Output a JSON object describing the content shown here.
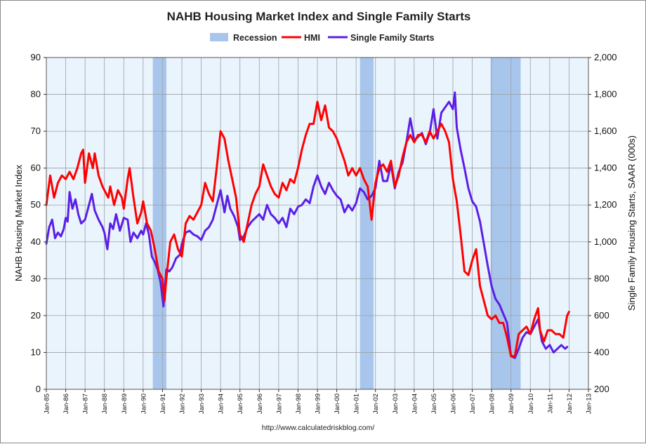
{
  "chart_data": {
    "type": "line",
    "title": "NAHB Housing Market Index and Single Family Starts",
    "source": "http://www.calculatedriskblog.com/",
    "ylabel_left": "NAHB Housing Market Index",
    "ylabel_right": "Single Family Housing Starts, SAAR (000s)",
    "ylim_left": [
      0,
      90
    ],
    "ylim_right": [
      200,
      2000
    ],
    "yticks_left": [
      "0",
      "10",
      "20",
      "30",
      "40",
      "50",
      "60",
      "70",
      "80",
      "90"
    ],
    "yticks_right": [
      "200",
      "400",
      "600",
      "800",
      "1,000",
      "1,200",
      "1,400",
      "1,600",
      "1,800",
      "2,000"
    ],
    "xticks": [
      "Jan-85",
      "Jan-86",
      "Jan-87",
      "Jan-88",
      "Jan-89",
      "Jan-90",
      "Jan-91",
      "Jan-92",
      "Jan-93",
      "Jan-94",
      "Jan-95",
      "Jan-96",
      "Jan-97",
      "Jan-98",
      "Jan-99",
      "Jan-00",
      "Jan-01",
      "Jan-02",
      "Jan-03",
      "Jan-04",
      "Jan-05",
      "Jan-06",
      "Jan-07",
      "Jan-08",
      "Jan-09",
      "Jan-10",
      "Jan-11",
      "Jan-12",
      "Jan-13"
    ],
    "xlim_years": [
      1985,
      2013
    ],
    "grid": true,
    "legend_position": "top-center",
    "legend": [
      "Recession",
      "HMI",
      "Single Family Starts"
    ],
    "colors": {
      "recession": "#a8c6ec",
      "hmi": "#ff0000",
      "starts": "#5b1fe6",
      "plot_bg": "#eaf4fd"
    },
    "recessions": [
      {
        "start": 1990.5,
        "end": 1991.2
      },
      {
        "start": 2001.2,
        "end": 2001.9
      },
      {
        "start": 2007.95,
        "end": 2009.5
      }
    ],
    "series": [
      {
        "name": "HMI",
        "axis": "left",
        "points": [
          [
            1985.0,
            50
          ],
          [
            1985.2,
            58
          ],
          [
            1985.4,
            52
          ],
          [
            1985.6,
            56
          ],
          [
            1985.8,
            58
          ],
          [
            1986.0,
            57
          ],
          [
            1986.2,
            59
          ],
          [
            1986.4,
            57
          ],
          [
            1986.6,
            60
          ],
          [
            1986.8,
            64
          ],
          [
            1986.9,
            65
          ],
          [
            1987.0,
            56
          ],
          [
            1987.2,
            64
          ],
          [
            1987.4,
            60
          ],
          [
            1987.5,
            64
          ],
          [
            1987.7,
            58
          ],
          [
            1987.9,
            55
          ],
          [
            1988.0,
            54
          ],
          [
            1988.2,
            52
          ],
          [
            1988.3,
            55
          ],
          [
            1988.5,
            50
          ],
          [
            1988.7,
            54
          ],
          [
            1988.9,
            52
          ],
          [
            1989.0,
            49
          ],
          [
            1989.2,
            57
          ],
          [
            1989.3,
            60
          ],
          [
            1989.5,
            52
          ],
          [
            1989.7,
            45
          ],
          [
            1989.9,
            48
          ],
          [
            1990.0,
            51
          ],
          [
            1990.2,
            45
          ],
          [
            1990.4,
            43
          ],
          [
            1990.6,
            38
          ],
          [
            1990.8,
            32
          ],
          [
            1991.0,
            30
          ],
          [
            1991.1,
            24
          ],
          [
            1991.2,
            30
          ],
          [
            1991.4,
            40
          ],
          [
            1991.6,
            42
          ],
          [
            1991.8,
            38
          ],
          [
            1992.0,
            36
          ],
          [
            1992.2,
            45
          ],
          [
            1992.4,
            47
          ],
          [
            1992.6,
            46
          ],
          [
            1992.8,
            48
          ],
          [
            1993.0,
            50
          ],
          [
            1993.2,
            56
          ],
          [
            1993.4,
            53
          ],
          [
            1993.6,
            51
          ],
          [
            1993.8,
            60
          ],
          [
            1994.0,
            70
          ],
          [
            1994.2,
            68
          ],
          [
            1994.4,
            62
          ],
          [
            1994.6,
            57
          ],
          [
            1994.8,
            52
          ],
          [
            1995.0,
            42
          ],
          [
            1995.2,
            40
          ],
          [
            1995.4,
            45
          ],
          [
            1995.6,
            50
          ],
          [
            1995.8,
            53
          ],
          [
            1996.0,
            55
          ],
          [
            1996.2,
            61
          ],
          [
            1996.4,
            58
          ],
          [
            1996.6,
            55
          ],
          [
            1996.8,
            53
          ],
          [
            1997.0,
            52
          ],
          [
            1997.2,
            56
          ],
          [
            1997.4,
            54
          ],
          [
            1997.6,
            57
          ],
          [
            1997.8,
            56
          ],
          [
            1998.0,
            60
          ],
          [
            1998.2,
            65
          ],
          [
            1998.4,
            69
          ],
          [
            1998.6,
            72
          ],
          [
            1998.8,
            72
          ],
          [
            1999.0,
            78
          ],
          [
            1999.2,
            73
          ],
          [
            1999.4,
            77
          ],
          [
            1999.6,
            71
          ],
          [
            1999.8,
            70
          ],
          [
            2000.0,
            68
          ],
          [
            2000.2,
            65
          ],
          [
            2000.4,
            62
          ],
          [
            2000.6,
            58
          ],
          [
            2000.8,
            60
          ],
          [
            2001.0,
            58
          ],
          [
            2001.2,
            60
          ],
          [
            2001.4,
            57
          ],
          [
            2001.6,
            55
          ],
          [
            2001.8,
            46
          ],
          [
            2002.0,
            56
          ],
          [
            2002.2,
            60
          ],
          [
            2002.4,
            61
          ],
          [
            2002.6,
            59
          ],
          [
            2002.8,
            62
          ],
          [
            2003.0,
            55
          ],
          [
            2003.2,
            58
          ],
          [
            2003.4,
            63
          ],
          [
            2003.6,
            67
          ],
          [
            2003.8,
            69
          ],
          [
            2004.0,
            67
          ],
          [
            2004.2,
            69
          ],
          [
            2004.4,
            69
          ],
          [
            2004.6,
            67
          ],
          [
            2004.8,
            70
          ],
          [
            2005.0,
            68
          ],
          [
            2005.2,
            70
          ],
          [
            2005.4,
            72
          ],
          [
            2005.6,
            70
          ],
          [
            2005.8,
            67
          ],
          [
            2006.0,
            57
          ],
          [
            2006.2,
            51
          ],
          [
            2006.4,
            42
          ],
          [
            2006.6,
            32
          ],
          [
            2006.8,
            31
          ],
          [
            2007.0,
            35
          ],
          [
            2007.2,
            38
          ],
          [
            2007.4,
            28
          ],
          [
            2007.6,
            24
          ],
          [
            2007.8,
            20
          ],
          [
            2008.0,
            19
          ],
          [
            2008.2,
            20
          ],
          [
            2008.4,
            18
          ],
          [
            2008.6,
            18
          ],
          [
            2008.8,
            14
          ],
          [
            2009.0,
            9
          ],
          [
            2009.2,
            9
          ],
          [
            2009.4,
            15
          ],
          [
            2009.6,
            16
          ],
          [
            2009.8,
            17
          ],
          [
            2010.0,
            15
          ],
          [
            2010.2,
            19
          ],
          [
            2010.4,
            22
          ],
          [
            2010.5,
            16
          ],
          [
            2010.7,
            13
          ],
          [
            2010.9,
            16
          ],
          [
            2011.1,
            16
          ],
          [
            2011.3,
            15
          ],
          [
            2011.5,
            15
          ],
          [
            2011.7,
            14
          ],
          [
            2011.8,
            17
          ],
          [
            2011.9,
            20
          ],
          [
            2012.0,
            21
          ]
        ]
      },
      {
        "name": "Single Family Starts",
        "axis": "right",
        "points": [
          [
            1985.0,
            990
          ],
          [
            1985.15,
            1080
          ],
          [
            1985.3,
            1120
          ],
          [
            1985.45,
            1020
          ],
          [
            1985.6,
            1050
          ],
          [
            1985.75,
            1030
          ],
          [
            1985.9,
            1070
          ],
          [
            1986.0,
            1130
          ],
          [
            1986.1,
            1110
          ],
          [
            1986.2,
            1270
          ],
          [
            1986.35,
            1180
          ],
          [
            1986.5,
            1230
          ],
          [
            1986.65,
            1150
          ],
          [
            1986.8,
            1100
          ],
          [
            1987.0,
            1120
          ],
          [
            1987.2,
            1200
          ],
          [
            1987.35,
            1260
          ],
          [
            1987.5,
            1170
          ],
          [
            1987.7,
            1120
          ],
          [
            1987.9,
            1080
          ],
          [
            1988.0,
            1050
          ],
          [
            1988.15,
            960
          ],
          [
            1988.3,
            1100
          ],
          [
            1988.45,
            1070
          ],
          [
            1988.6,
            1150
          ],
          [
            1988.8,
            1060
          ],
          [
            1989.0,
            1130
          ],
          [
            1989.2,
            1120
          ],
          [
            1989.35,
            1000
          ],
          [
            1989.5,
            1050
          ],
          [
            1989.7,
            1020
          ],
          [
            1989.9,
            1060
          ],
          [
            1990.0,
            1040
          ],
          [
            1990.15,
            1100
          ],
          [
            1990.3,
            1040
          ],
          [
            1990.45,
            920
          ],
          [
            1990.6,
            890
          ],
          [
            1990.75,
            850
          ],
          [
            1990.9,
            780
          ],
          [
            1991.05,
            650
          ],
          [
            1991.2,
            850
          ],
          [
            1991.35,
            840
          ],
          [
            1991.5,
            860
          ],
          [
            1991.7,
            910
          ],
          [
            1991.9,
            930
          ],
          [
            1992.0,
            990
          ],
          [
            1992.2,
            1050
          ],
          [
            1992.4,
            1060
          ],
          [
            1992.6,
            1040
          ],
          [
            1992.8,
            1030
          ],
          [
            1993.0,
            1010
          ],
          [
            1993.2,
            1060
          ],
          [
            1993.4,
            1080
          ],
          [
            1993.6,
            1120
          ],
          [
            1993.8,
            1200
          ],
          [
            1994.0,
            1280
          ],
          [
            1994.2,
            1160
          ],
          [
            1994.35,
            1250
          ],
          [
            1994.5,
            1180
          ],
          [
            1994.7,
            1140
          ],
          [
            1994.9,
            1080
          ],
          [
            1995.0,
            1010
          ],
          [
            1995.2,
            1030
          ],
          [
            1995.4,
            1080
          ],
          [
            1995.6,
            1110
          ],
          [
            1995.8,
            1130
          ],
          [
            1996.0,
            1150
          ],
          [
            1996.2,
            1120
          ],
          [
            1996.4,
            1200
          ],
          [
            1996.6,
            1150
          ],
          [
            1996.8,
            1130
          ],
          [
            1997.0,
            1100
          ],
          [
            1997.2,
            1130
          ],
          [
            1997.4,
            1080
          ],
          [
            1997.6,
            1180
          ],
          [
            1997.8,
            1150
          ],
          [
            1998.0,
            1190
          ],
          [
            1998.2,
            1200
          ],
          [
            1998.4,
            1230
          ],
          [
            1998.6,
            1210
          ],
          [
            1998.8,
            1300
          ],
          [
            1999.0,
            1360
          ],
          [
            1999.2,
            1300
          ],
          [
            1999.4,
            1260
          ],
          [
            1999.6,
            1320
          ],
          [
            1999.8,
            1280
          ],
          [
            2000.0,
            1250
          ],
          [
            2000.2,
            1230
          ],
          [
            2000.4,
            1160
          ],
          [
            2000.6,
            1200
          ],
          [
            2000.8,
            1170
          ],
          [
            2001.0,
            1210
          ],
          [
            2001.2,
            1290
          ],
          [
            2001.4,
            1270
          ],
          [
            2001.6,
            1230
          ],
          [
            2001.8,
            1250
          ],
          [
            2002.0,
            1290
          ],
          [
            2002.2,
            1440
          ],
          [
            2002.4,
            1330
          ],
          [
            2002.6,
            1330
          ],
          [
            2002.8,
            1420
          ],
          [
            2003.0,
            1290
          ],
          [
            2003.2,
            1380
          ],
          [
            2003.4,
            1430
          ],
          [
            2003.6,
            1540
          ],
          [
            2003.8,
            1670
          ],
          [
            2004.0,
            1550
          ],
          [
            2004.2,
            1570
          ],
          [
            2004.4,
            1590
          ],
          [
            2004.6,
            1530
          ],
          [
            2004.8,
            1590
          ],
          [
            2005.0,
            1720
          ],
          [
            2005.2,
            1560
          ],
          [
            2005.4,
            1700
          ],
          [
            2005.6,
            1730
          ],
          [
            2005.8,
            1760
          ],
          [
            2006.0,
            1720
          ],
          [
            2006.1,
            1810
          ],
          [
            2006.2,
            1620
          ],
          [
            2006.4,
            1500
          ],
          [
            2006.6,
            1400
          ],
          [
            2006.8,
            1290
          ],
          [
            2007.0,
            1220
          ],
          [
            2007.2,
            1190
          ],
          [
            2007.4,
            1110
          ],
          [
            2007.6,
            990
          ],
          [
            2007.8,
            870
          ],
          [
            2008.0,
            760
          ],
          [
            2008.2,
            690
          ],
          [
            2008.4,
            660
          ],
          [
            2008.6,
            610
          ],
          [
            2008.8,
            560
          ],
          [
            2009.0,
            380
          ],
          [
            2009.2,
            370
          ],
          [
            2009.4,
            420
          ],
          [
            2009.6,
            480
          ],
          [
            2009.8,
            510
          ],
          [
            2010.0,
            500
          ],
          [
            2010.2,
            540
          ],
          [
            2010.4,
            580
          ],
          [
            2010.6,
            460
          ],
          [
            2010.8,
            420
          ],
          [
            2011.0,
            440
          ],
          [
            2011.2,
            400
          ],
          [
            2011.4,
            420
          ],
          [
            2011.6,
            440
          ],
          [
            2011.8,
            420
          ],
          [
            2011.9,
            430
          ]
        ]
      }
    ]
  }
}
